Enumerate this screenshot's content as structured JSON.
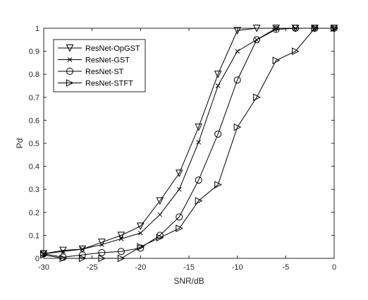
{
  "chart_data": {
    "type": "line",
    "xlabel": "SNR/dB",
    "ylabel": "Pd",
    "xlim": [
      -30,
      0
    ],
    "ylim": [
      0,
      1
    ],
    "x_ticks": [
      "-30",
      "-25",
      "-20",
      "-15",
      "-10",
      "-5",
      "0"
    ],
    "y_ticks": [
      "0",
      "0.1",
      "0.2",
      "0.3",
      "0.4",
      "0.5",
      "0.6",
      "0.7",
      "0.8",
      "0.9",
      "1"
    ],
    "grid": false,
    "legend_position": "top-left",
    "x": [
      -30,
      -28,
      -26,
      -24,
      -22,
      -20,
      -18,
      -16,
      -14,
      -12,
      -10,
      -8,
      -6,
      -4,
      -2,
      0
    ],
    "series": [
      {
        "name": "ResNet-OpGST",
        "marker": "triangle-down",
        "values": [
          0.02,
          0.035,
          0.04,
          0.07,
          0.1,
          0.14,
          0.25,
          0.37,
          0.57,
          0.8,
          0.99,
          1.0,
          1.0,
          1.0,
          1.0,
          1.0
        ]
      },
      {
        "name": "ResNet-GST",
        "marker": "x",
        "values": [
          0.02,
          0.03,
          0.04,
          0.06,
          0.085,
          0.11,
          0.19,
          0.3,
          0.505,
          0.75,
          0.9,
          0.95,
          1.0,
          1.0,
          1.0,
          1.0
        ]
      },
      {
        "name": "ResNet-ST",
        "marker": "circle",
        "values": [
          0.02,
          0.005,
          0.015,
          0.025,
          0.03,
          0.045,
          0.1,
          0.18,
          0.34,
          0.54,
          0.775,
          0.95,
          0.995,
          1.0,
          1.0,
          1.0
        ]
      },
      {
        "name": "ResNet-STFT",
        "marker": "triangle-right",
        "values": [
          0.015,
          0.0,
          0.0,
          0.0,
          0.0,
          0.05,
          0.09,
          0.13,
          0.25,
          0.32,
          0.57,
          0.7,
          0.86,
          0.9,
          1.0,
          1.0
        ]
      }
    ]
  }
}
